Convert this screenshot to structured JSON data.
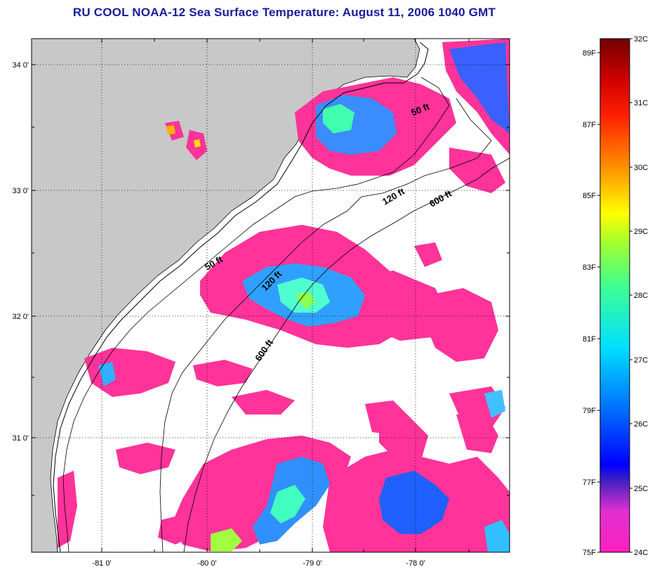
{
  "title": "RU COOL  NOAA-12  Sea Surface Temperature:  August 11, 2006 1040 GMT",
  "lat_ticks": [
    "34 0'",
    "33 0'",
    "32 0'",
    "31 0'"
  ],
  "lon_ticks": [
    "-81 0'",
    "-80 0'",
    "-79 0'",
    "-78 0'"
  ],
  "contours": {
    "c50_top": "50 ft",
    "c120_top": "120 ft",
    "c600_top": "600 ft",
    "c50_mid": "50 ft",
    "c120_mid": "120 ft",
    "c600_mid": "600 ft"
  },
  "colorbar": {
    "celsius": [
      "32C",
      "31C",
      "30C",
      "29C",
      "28C",
      "27C",
      "26C",
      "25C",
      "24C"
    ],
    "fahrenheit": [
      "89F",
      "87F",
      "85F",
      "83F",
      "81F",
      "79F",
      "77F",
      "75F"
    ]
  },
  "colors": {
    "land": "#c8c8c8",
    "cloud": "#ffffff",
    "sst_24c": "#ff3399",
    "title": "#1a1a99"
  }
}
